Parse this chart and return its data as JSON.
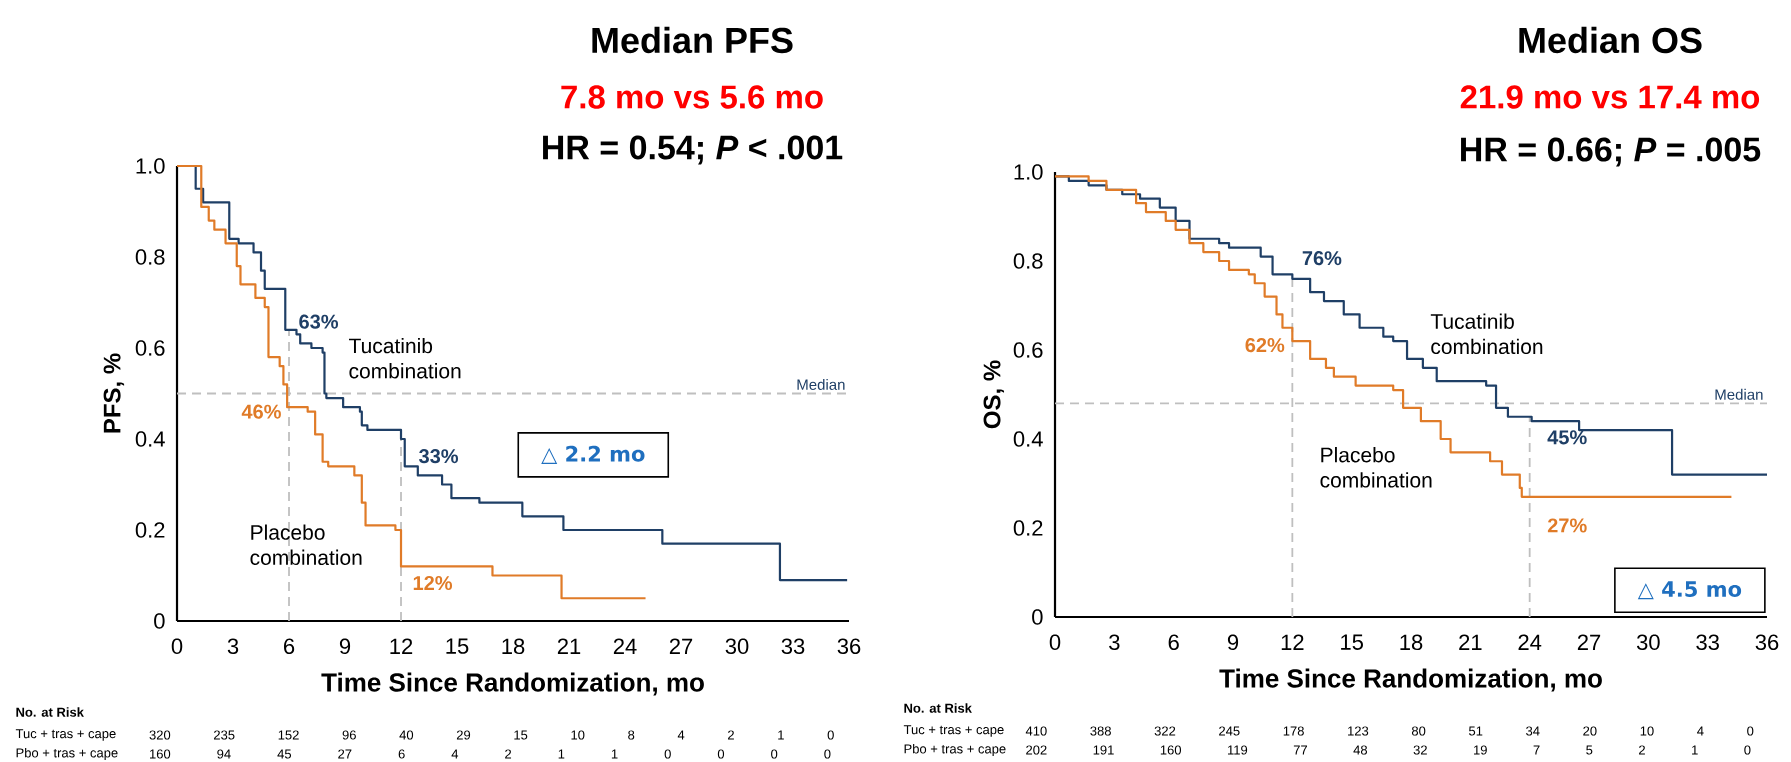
{
  "chart_data": [
    {
      "type": "step",
      "title": "Median PFS",
      "subtitle": "7.8 mo vs 5.6 mo",
      "xlabel": "Time Since Randomization, mo",
      "ylabel": "PFS, %",
      "xlim": [
        0,
        36
      ],
      "ylim": [
        0,
        1
      ],
      "xticks": [
        0,
        3,
        6,
        9,
        12,
        15,
        18,
        21,
        24,
        27,
        30,
        33,
        36
      ],
      "yticks": [
        0,
        0.2,
        0.4,
        0.6,
        0.8,
        {
          "value": 1,
          "label": "1.0"
        }
      ],
      "series": [
        {
          "name": "Tucatinib combination",
          "color": "#1f3f66",
          "x": [
            0,
            1.0,
            1.4,
            2.8,
            3.3,
            4.1,
            4.5,
            4.7,
            5.8,
            6.4,
            6.6,
            7.2,
            7.8,
            7.9,
            8.0,
            8.9,
            9.8,
            9.9,
            10.2,
            12.0,
            12.2,
            12.9,
            14.2,
            14.7,
            16.2,
            18.5,
            20.7,
            26.0,
            32.3,
            35.9
          ],
          "values": [
            1.0,
            0.95,
            0.92,
            0.84,
            0.83,
            0.81,
            0.77,
            0.73,
            0.64,
            0.63,
            0.61,
            0.6,
            0.59,
            0.5,
            0.49,
            0.47,
            0.46,
            0.43,
            0.42,
            0.4,
            0.34,
            0.32,
            0.3,
            0.27,
            0.26,
            0.23,
            0.2,
            0.17,
            0.09,
            0.09
          ]
        },
        {
          "name": "Placebo combination",
          "color": "#e07b28",
          "x": [
            0,
            1.3,
            1.7,
            2.0,
            2.6,
            3.2,
            3.4,
            4.2,
            4.7,
            4.9,
            5.5,
            5.7,
            5.9,
            7.0,
            7.4,
            7.8,
            8.1,
            9.5,
            9.9,
            10.1,
            11.7,
            12.0,
            16.9,
            20.6,
            25.1
          ],
          "values": [
            1.0,
            0.91,
            0.88,
            0.86,
            0.83,
            0.78,
            0.74,
            0.71,
            0.69,
            0.58,
            0.56,
            0.52,
            0.47,
            0.46,
            0.41,
            0.35,
            0.34,
            0.32,
            0.26,
            0.21,
            0.2,
            0.12,
            0.1,
            0.05,
            0.05
          ]
        }
      ],
      "ref_lines": [
        {
          "axis": "y",
          "value": 0.5,
          "label": "Median",
          "color": "#bfbfbf",
          "line_style": "dashed"
        },
        {
          "axis": "x",
          "value": 6,
          "color": "#bfbfbf",
          "line_style": "dashed"
        },
        {
          "axis": "x",
          "value": 12,
          "color": "#bfbfbf",
          "line_style": "dashed"
        }
      ],
      "annotations": [
        "HR = 0.54; *P* < .001",
        "△ 2.2 mo",
        "No. at Risk",
        "Tuc + tras + cape",
        "320 235 152 96 40 29 15 10 8 4 2 1 0",
        "Pbo + tras + cape",
        "160 94 45 27 6 4 2 1 1 0 0 0 0",
        {
          "text": "63%",
          "x": 6,
          "y": 0.63
        },
        {
          "text": "46%",
          "x": 6,
          "y": 0.46
        },
        {
          "text": "33%",
          "x": 12,
          "y": 0.33
        },
        {
          "text": "12%",
          "x": 12,
          "y": 0.12
        }
      ]
    },
    {
      "type": "step",
      "title": "Median OS",
      "subtitle": "21.9 mo vs 17.4 mo",
      "xlabel": "Time Since Randomization, mo",
      "ylabel": "OS, %",
      "xlim": [
        0,
        36
      ],
      "ylim": [
        0,
        1
      ],
      "xticks": [
        0,
        3,
        6,
        9,
        12,
        15,
        18,
        21,
        24,
        27,
        30,
        33,
        36
      ],
      "yticks": [
        0,
        0.2,
        0.4,
        0.6,
        0.8,
        {
          "value": 1,
          "label": "1.0"
        }
      ],
      "series": [
        {
          "name": "Tucatinib combination",
          "color": "#1f3f66",
          "x": [
            0,
            0.7,
            1.7,
            2.6,
            3.4,
            4.3,
            5.3,
            6.1,
            6.8,
            8.3,
            8.8,
            10.4,
            11.0,
            12.0,
            12.9,
            13.6,
            14.6,
            15.4,
            16.6,
            17.1,
            17.8,
            18.6,
            19.3,
            21.8,
            22.3,
            22.9,
            24.1,
            26.5,
            31.2,
            36.0
          ],
          "values": [
            0.99,
            0.98,
            0.97,
            0.96,
            0.95,
            0.94,
            0.92,
            0.89,
            0.85,
            0.84,
            0.83,
            0.81,
            0.77,
            0.76,
            0.73,
            0.71,
            0.68,
            0.65,
            0.63,
            0.62,
            0.58,
            0.56,
            0.53,
            0.52,
            0.47,
            0.45,
            0.44,
            0.42,
            0.32,
            0.32
          ]
        },
        {
          "name": "Placebo combination",
          "color": "#e07b28",
          "x": [
            0,
            1.7,
            2.6,
            4.1,
            4.6,
            5.6,
            6.1,
            6.8,
            7.5,
            8.3,
            8.8,
            9.8,
            10.1,
            10.6,
            11.2,
            11.5,
            12.0,
            12.9,
            13.7,
            14.1,
            15.2,
            17.1,
            17.6,
            18.5,
            19.5,
            20.0,
            22.0,
            22.6,
            23.5,
            23.6,
            34.2
          ],
          "values": [
            0.99,
            0.98,
            0.96,
            0.93,
            0.91,
            0.89,
            0.87,
            0.84,
            0.82,
            0.8,
            0.78,
            0.77,
            0.75,
            0.72,
            0.68,
            0.65,
            0.62,
            0.58,
            0.56,
            0.54,
            0.52,
            0.51,
            0.47,
            0.44,
            0.4,
            0.37,
            0.35,
            0.32,
            0.29,
            0.27,
            0.27
          ]
        }
      ],
      "ref_lines": [
        {
          "axis": "y",
          "value": 0.48,
          "label": "Median",
          "color": "#bfbfbf",
          "line_style": "dashed"
        },
        {
          "axis": "x",
          "value": 12,
          "color": "#bfbfbf",
          "line_style": "dashed"
        },
        {
          "axis": "x",
          "value": 24,
          "color": "#bfbfbf",
          "line_style": "dashed"
        }
      ],
      "annotations": [
        "HR = 0.66; *P* = .005",
        "△ 4.5 mo",
        "No. at Risk",
        "Tuc + tras + cape",
        "410 388 322 245 178 123 80 51 34 20 10 4 0",
        "Pbo + tras + cape",
        "202 191 160 119 77 48 32 19 7 5 2 1 0",
        {
          "text": "76%",
          "x": 12,
          "y": 0.76
        },
        {
          "text": "62%",
          "x": 12,
          "y": 0.62
        },
        {
          "text": "45%",
          "x": 24,
          "y": 0.45
        },
        {
          "text": "27%",
          "x": 24,
          "y": 0.27
        }
      ]
    }
  ]
}
